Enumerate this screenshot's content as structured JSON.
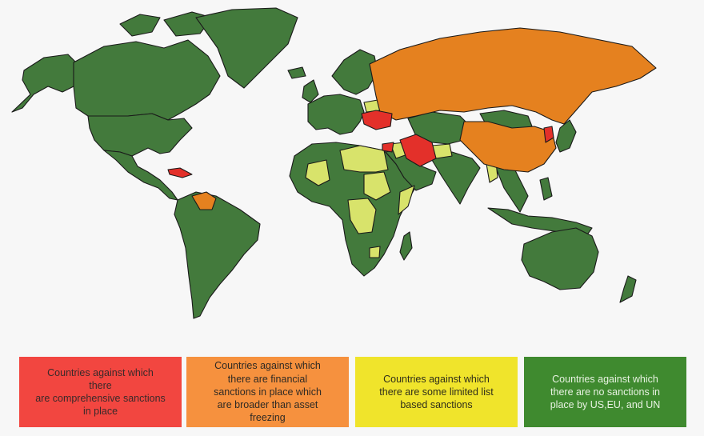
{
  "colors": {
    "no_sanctions": "#437a3c",
    "limited": "#d8e36b",
    "financial": "#e5811f",
    "comprehensive": "#e3302a",
    "ocean": "#f7f7f7",
    "border": "#1a1a1a"
  },
  "legend": [
    {
      "text": "Countries against which\nthere\nare comprehensive sanctions\nin place",
      "fill": "#f24640",
      "text_color": "#3a2a2a"
    },
    {
      "text": "Countries against which\nthere are financial\nsanctions in place which\nare broader than asset\nfreezing",
      "fill": "#f6913e",
      "text_color": "#2f2a24"
    },
    {
      "text": "Countries against which\nthere are some limited list\nbased sanctions",
      "fill": "#f0e42b",
      "text_color": "#2f2e1a"
    },
    {
      "text": "Countries against which\nthere are no sanctions in\nplace by US,EU, and UN",
      "fill": "#3f8a2f",
      "text_color": "#e8f2e2"
    }
  ],
  "categories": {
    "comprehensive": [
      "Cuba",
      "Ukraine (Crimea)",
      "Syria",
      "Iran",
      "North Korea"
    ],
    "financial": [
      "Russia",
      "China",
      "Venezuela"
    ],
    "limited": [
      "Libya",
      "Egypt",
      "Sudan",
      "South Sudan",
      "Somalia",
      "Central African Republic",
      "DR Congo",
      "Mali",
      "Guinea",
      "Iraq",
      "Afghanistan",
      "Yemen",
      "Myanmar",
      "Belarus",
      "Lebanon",
      "Zimbabwe",
      "Bosnia"
    ]
  }
}
